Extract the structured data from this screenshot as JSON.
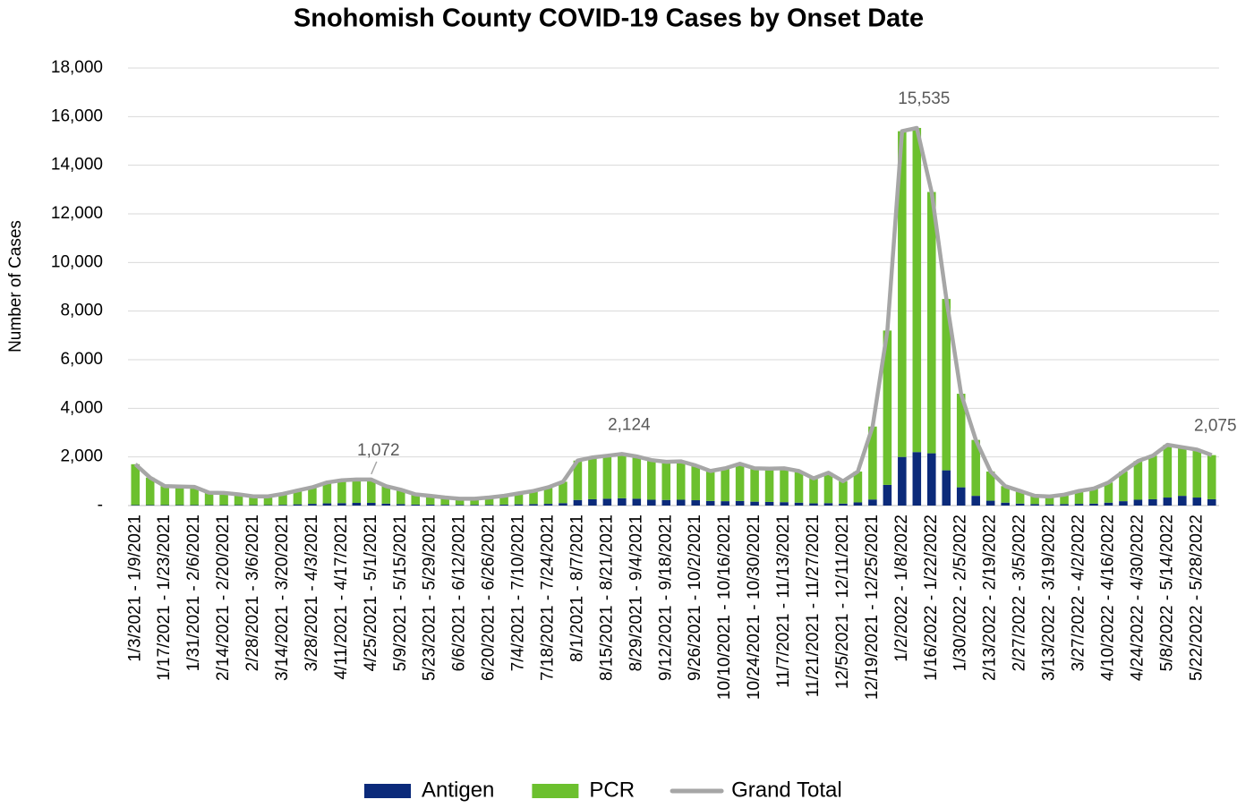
{
  "chart_data": {
    "type": "bar",
    "stacked": true,
    "title": "Snohomish County COVID-19 Cases by Onset Date",
    "y_label": "Number of Cases",
    "categories": [
      "1/3/2021 - 1/9/2021",
      null,
      "1/17/2021 - 1/23/2021",
      null,
      "1/31/2021 - 2/6/2021",
      null,
      "2/14/2021 - 2/20/2021",
      null,
      "2/28/2021 - 3/6/2021",
      null,
      "3/14/2021 - 3/20/2021",
      null,
      "3/28/2021 - 4/3/2021",
      null,
      "4/11/2021 - 4/17/2021",
      null,
      "4/25/2021 - 5/1/2021",
      null,
      "5/9/2021 - 5/15/2021",
      null,
      "5/23/2021 - 5/29/2021",
      null,
      "6/6/2021 - 6/12/2021",
      null,
      "6/20/2021 - 6/26/2021",
      null,
      "7/4/2021 - 7/10/2021",
      null,
      "7/18/2021 - 7/24/2021",
      null,
      "8/1/2021 - 8/7/2021",
      null,
      "8/15/2021 - 8/21/2021",
      null,
      "8/29/2021 - 9/4/2021",
      null,
      "9/12/2021 - 9/18/2021",
      null,
      "9/26/2021 - 10/2/2021",
      null,
      "10/10/2021 - 10/16/2021",
      null,
      "10/24/2021 - 10/30/2021",
      null,
      "11/7/2021 - 11/13/2021",
      null,
      "11/21/2021 - 11/27/2021",
      null,
      "12/5/2021 - 12/11/2021",
      null,
      "12/19/2021 - 12/25/2021",
      null,
      "1/2/2022 - 1/8/2022",
      null,
      "1/16/2022 - 1/22/2022",
      null,
      "1/30/2022 - 2/5/2022",
      null,
      "2/13/2022 - 2/19/2022",
      null,
      "2/27/2022 - 3/5/2022",
      null,
      "3/13/2022 - 3/19/2022",
      null,
      "3/27/2022 - 4/2/2022",
      null,
      "4/10/2022 - 4/16/2022",
      null,
      "4/24/2022 - 4/30/2022",
      null,
      "5/8/2022 - 5/14/2022",
      null,
      "5/22/2022 - 5/28/2022",
      null
    ],
    "series": [
      {
        "name": "Antigen",
        "color": "#0b2a7a",
        "type": "bar",
        "values": [
          20,
          20,
          20,
          20,
          20,
          20,
          20,
          20,
          20,
          20,
          30,
          50,
          70,
          90,
          100,
          110,
          110,
          80,
          60,
          40,
          40,
          30,
          30,
          30,
          30,
          40,
          50,
          60,
          70,
          100,
          230,
          260,
          280,
          300,
          280,
          240,
          230,
          240,
          220,
          190,
          180,
          190,
          160,
          150,
          140,
          120,
          90,
          100,
          80,
          130,
          250,
          850,
          2000,
          2200,
          2150,
          1450,
          750,
          400,
          200,
          120,
          80,
          60,
          50,
          60,
          70,
          80,
          120,
          180,
          240,
          260,
          330,
          400,
          330,
          260
        ]
      },
      {
        "name": "PCR",
        "color": "#6cc02e",
        "type": "bar",
        "values": [
          1680,
          1130,
          780,
          760,
          750,
          510,
          500,
          440,
          360,
          360,
          450,
          570,
          680,
          860,
          940,
          960,
          962,
          720,
          590,
          420,
          360,
          300,
          250,
          250,
          300,
          360,
          450,
          540,
          680,
          880,
          1620,
          1720,
          1770,
          1824,
          1740,
          1630,
          1570,
          1580,
          1430,
          1230,
          1350,
          1530,
          1370,
          1370,
          1390,
          1300,
          1030,
          1250,
          920,
          1270,
          3000,
          6350,
          13400,
          13335,
          10750,
          7050,
          3850,
          2300,
          1200,
          680,
          520,
          340,
          320,
          390,
          530,
          620,
          830,
          1220,
          1590,
          1790,
          2170,
          2000,
          1970,
          1815
        ]
      },
      {
        "name": "Grand Total",
        "color": "#a6a6a6",
        "type": "line",
        "values": [
          1700,
          1150,
          800,
          780,
          770,
          530,
          520,
          460,
          380,
          380,
          480,
          620,
          750,
          950,
          1040,
          1070,
          1072,
          800,
          650,
          460,
          400,
          330,
          280,
          280,
          330,
          400,
          500,
          600,
          750,
          980,
          1850,
          1980,
          2050,
          2124,
          2020,
          1870,
          1800,
          1820,
          1650,
          1420,
          1530,
          1720,
          1530,
          1520,
          1530,
          1420,
          1120,
          1350,
          1000,
          1400,
          3250,
          7200,
          15400,
          15535,
          12900,
          8500,
          4600,
          2700,
          1400,
          800,
          600,
          400,
          370,
          450,
          600,
          700,
          950,
          1400,
          1830,
          2050,
          2500,
          2400,
          2300,
          2075
        ],
        "value_labels": [
          null,
          null,
          null,
          null,
          null,
          null,
          null,
          null,
          null,
          null,
          null,
          null,
          null,
          null,
          null,
          null,
          "1,072",
          null,
          null,
          null,
          null,
          null,
          null,
          null,
          null,
          null,
          null,
          null,
          null,
          null,
          null,
          null,
          null,
          "2,124",
          null,
          null,
          null,
          null,
          null,
          null,
          null,
          null,
          null,
          null,
          null,
          null,
          null,
          null,
          null,
          null,
          null,
          null,
          null,
          "15,535",
          null,
          null,
          null,
          null,
          null,
          null,
          null,
          null,
          null,
          null,
          null,
          null,
          null,
          null,
          null,
          null,
          null,
          null,
          null,
          "2,075"
        ]
      }
    ],
    "ylim": [
      0,
      18000
    ],
    "yticks": [
      {
        "value": 0,
        "label": "-"
      },
      {
        "value": 2000,
        "label": "2,000"
      },
      {
        "value": 4000,
        "label": "4,000"
      },
      {
        "value": 6000,
        "label": "6,000"
      },
      {
        "value": 8000,
        "label": "8,000"
      },
      {
        "value": 10000,
        "label": "10,000"
      },
      {
        "value": 12000,
        "label": "12,000"
      },
      {
        "value": 14000,
        "label": "14,000"
      },
      {
        "value": 16000,
        "label": "16,000"
      },
      {
        "value": 18000,
        "label": "18,000"
      }
    ],
    "grid": true,
    "legend": "bottom"
  }
}
